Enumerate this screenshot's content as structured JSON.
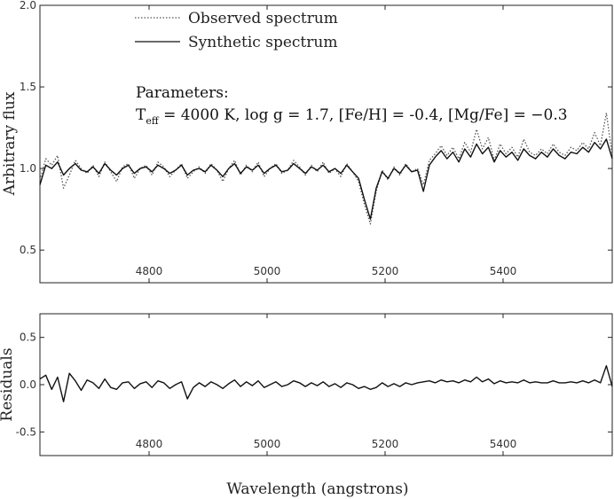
{
  "chart_data": [
    {
      "type": "line",
      "title": "",
      "xlabel": "",
      "ylabel": "Arbitrary flux",
      "xlim": [
        4615,
        5585
      ],
      "ylim": [
        0.3,
        2.0
      ],
      "xticks": [
        4800,
        5000,
        5200,
        5400
      ],
      "yticks": [
        0.5,
        1.0,
        1.5,
        2.0
      ],
      "ytick_labels": [
        "0.5",
        "1.0",
        "1.5",
        "2.0"
      ],
      "legend_position": "top-left",
      "annotation": {
        "heading": "Parameters:",
        "teff_symbol": "T",
        "teff_sub": "eff",
        "line": " = 4000 K, log g = 1.7, [Fe/H] = -0.4, [Mg/Fe] = −0.3"
      },
      "series": [
        {
          "name": "Observed spectrum",
          "style": "dotted",
          "color": "#555555",
          "x": [
            4615,
            4625,
            4635,
            4645,
            4655,
            4665,
            4675,
            4685,
            4695,
            4705,
            4715,
            4725,
            4735,
            4745,
            4755,
            4765,
            4775,
            4785,
            4795,
            4805,
            4815,
            4825,
            4835,
            4845,
            4855,
            4865,
            4875,
            4885,
            4895,
            4905,
            4915,
            4925,
            4935,
            4945,
            4955,
            4965,
            4975,
            4985,
            4995,
            5005,
            5015,
            5025,
            5035,
            5045,
            5055,
            5065,
            5075,
            5085,
            5095,
            5105,
            5115,
            5125,
            5135,
            5145,
            5155,
            5165,
            5175,
            5185,
            5195,
            5205,
            5215,
            5225,
            5235,
            5245,
            5255,
            5265,
            5275,
            5285,
            5295,
            5305,
            5315,
            5325,
            5335,
            5345,
            5355,
            5365,
            5375,
            5385,
            5395,
            5405,
            5415,
            5425,
            5435,
            5445,
            5455,
            5465,
            5475,
            5485,
            5495,
            5505,
            5515,
            5525,
            5535,
            5545,
            5555,
            5565,
            5575,
            5585
          ],
          "values": [
            0.93,
            1.06,
            1.02,
            1.08,
            0.88,
            0.96,
            1.05,
            1.0,
            0.97,
            1.02,
            0.95,
            1.04,
            0.98,
            0.92,
            1.01,
            1.03,
            0.94,
            1.0,
            1.02,
            0.96,
            1.04,
            1.01,
            0.95,
            0.99,
            1.03,
            0.94,
            0.98,
            1.01,
            0.97,
            1.03,
            0.99,
            0.92,
            1.0,
            1.05,
            0.96,
            1.02,
            0.98,
            1.04,
            0.95,
            1.0,
            1.03,
            0.97,
            0.99,
            1.05,
            1.01,
            0.96,
            1.02,
            0.98,
            1.04,
            0.97,
            1.0,
            0.95,
            1.03,
            0.98,
            0.92,
            0.78,
            0.66,
            0.86,
            0.99,
            0.93,
            1.01,
            0.96,
            1.03,
            0.98,
            1.0,
            0.9,
            1.05,
            1.09,
            1.14,
            1.08,
            1.13,
            1.06,
            1.16,
            1.1,
            1.24,
            1.12,
            1.19,
            1.05,
            1.15,
            1.09,
            1.13,
            1.07,
            1.18,
            1.1,
            1.08,
            1.12,
            1.09,
            1.15,
            1.1,
            1.08,
            1.13,
            1.11,
            1.16,
            1.12,
            1.22,
            1.14,
            1.34,
            1.08
          ]
        },
        {
          "name": "Synthetic spectrum",
          "style": "solid",
          "color": "#111111",
          "x": [
            4615,
            4625,
            4635,
            4645,
            4655,
            4665,
            4675,
            4685,
            4695,
            4705,
            4715,
            4725,
            4735,
            4745,
            4755,
            4765,
            4775,
            4785,
            4795,
            4805,
            4815,
            4825,
            4835,
            4845,
            4855,
            4865,
            4875,
            4885,
            4895,
            4905,
            4915,
            4925,
            4935,
            4945,
            4955,
            4965,
            4975,
            4985,
            4995,
            5005,
            5015,
            5025,
            5035,
            5045,
            5055,
            5065,
            5075,
            5085,
            5095,
            5105,
            5115,
            5125,
            5135,
            5145,
            5155,
            5165,
            5175,
            5185,
            5195,
            5205,
            5215,
            5225,
            5235,
            5245,
            5255,
            5265,
            5275,
            5285,
            5295,
            5305,
            5315,
            5325,
            5335,
            5345,
            5355,
            5365,
            5375,
            5385,
            5395,
            5405,
            5415,
            5425,
            5435,
            5445,
            5455,
            5465,
            5475,
            5485,
            5495,
            5505,
            5515,
            5525,
            5535,
            5545,
            5555,
            5565,
            5575,
            5585
          ],
          "values": [
            0.9,
            1.02,
            1.0,
            1.04,
            0.96,
            1.0,
            1.03,
            0.99,
            0.98,
            1.01,
            0.97,
            1.03,
            0.99,
            0.96,
            1.0,
            1.02,
            0.97,
            1.0,
            1.01,
            0.98,
            1.02,
            1.0,
            0.97,
            0.99,
            1.02,
            0.96,
            0.99,
            1.0,
            0.98,
            1.02,
            0.99,
            0.95,
            1.0,
            1.03,
            0.97,
            1.01,
            0.99,
            1.02,
            0.97,
            1.0,
            1.02,
            0.98,
            0.99,
            1.03,
            1.0,
            0.97,
            1.01,
            0.99,
            1.02,
            0.98,
            1.0,
            0.97,
            1.02,
            0.98,
            0.94,
            0.81,
            0.69,
            0.88,
            0.98,
            0.94,
            1.0,
            0.97,
            1.02,
            0.98,
            0.99,
            0.86,
            1.02,
            1.07,
            1.11,
            1.06,
            1.1,
            1.04,
            1.12,
            1.07,
            1.15,
            1.09,
            1.13,
            1.04,
            1.11,
            1.07,
            1.1,
            1.05,
            1.12,
            1.08,
            1.06,
            1.1,
            1.07,
            1.12,
            1.08,
            1.06,
            1.1,
            1.09,
            1.13,
            1.1,
            1.16,
            1.12,
            1.18,
            1.06
          ]
        }
      ]
    },
    {
      "type": "line",
      "title": "",
      "xlabel": "Wavelength (angstrons)",
      "ylabel": "Residuals",
      "xlim": [
        4615,
        5585
      ],
      "ylim": [
        -0.75,
        0.75
      ],
      "xticks": [
        4800,
        5000,
        5200,
        5400
      ],
      "yticks": [
        -0.5,
        0.0,
        0.5
      ],
      "ytick_labels": [
        "-0.5",
        "0.0",
        "0.5"
      ],
      "series": [
        {
          "name": "",
          "style": "solid",
          "color": "#111111",
          "x": [
            4615,
            4625,
            4635,
            4645,
            4655,
            4665,
            4675,
            4685,
            4695,
            4705,
            4715,
            4725,
            4735,
            4745,
            4755,
            4765,
            4775,
            4785,
            4795,
            4805,
            4815,
            4825,
            4835,
            4845,
            4855,
            4865,
            4875,
            4885,
            4895,
            4905,
            4915,
            4925,
            4935,
            4945,
            4955,
            4965,
            4975,
            4985,
            4995,
            5005,
            5015,
            5025,
            5035,
            5045,
            5055,
            5065,
            5075,
            5085,
            5095,
            5105,
            5115,
            5125,
            5135,
            5145,
            5155,
            5165,
            5175,
            5185,
            5195,
            5205,
            5215,
            5225,
            5235,
            5245,
            5255,
            5265,
            5275,
            5285,
            5295,
            5305,
            5315,
            5325,
            5335,
            5345,
            5355,
            5365,
            5375,
            5385,
            5395,
            5405,
            5415,
            5425,
            5435,
            5445,
            5455,
            5465,
            5475,
            5485,
            5495,
            5505,
            5515,
            5525,
            5535,
            5545,
            5555,
            5565,
            5575,
            5585
          ],
          "values": [
            0.06,
            0.1,
            -0.05,
            0.08,
            -0.18,
            0.12,
            0.04,
            -0.06,
            0.05,
            0.02,
            -0.04,
            0.06,
            -0.03,
            -0.05,
            0.02,
            0.03,
            -0.04,
            0.01,
            0.03,
            -0.03,
            0.04,
            0.02,
            -0.04,
            0.0,
            0.03,
            -0.15,
            -0.03,
            0.02,
            -0.02,
            0.03,
            0.0,
            -0.04,
            0.01,
            0.05,
            -0.02,
            0.03,
            -0.01,
            0.04,
            -0.03,
            0.0,
            0.03,
            -0.02,
            0.0,
            0.04,
            0.02,
            -0.02,
            0.02,
            -0.01,
            0.03,
            -0.02,
            0.01,
            -0.03,
            0.02,
            0.0,
            -0.04,
            -0.02,
            -0.05,
            -0.03,
            0.02,
            -0.02,
            0.01,
            -0.02,
            0.02,
            0.0,
            0.02,
            0.03,
            0.04,
            0.02,
            0.05,
            0.03,
            0.04,
            0.02,
            0.05,
            0.03,
            0.08,
            0.03,
            0.06,
            0.01,
            0.04,
            0.02,
            0.03,
            0.02,
            0.05,
            0.02,
            0.03,
            0.02,
            0.02,
            0.04,
            0.02,
            0.02,
            0.03,
            0.02,
            0.04,
            0.02,
            0.05,
            0.02,
            0.2,
            -0.02
          ]
        }
      ]
    }
  ]
}
